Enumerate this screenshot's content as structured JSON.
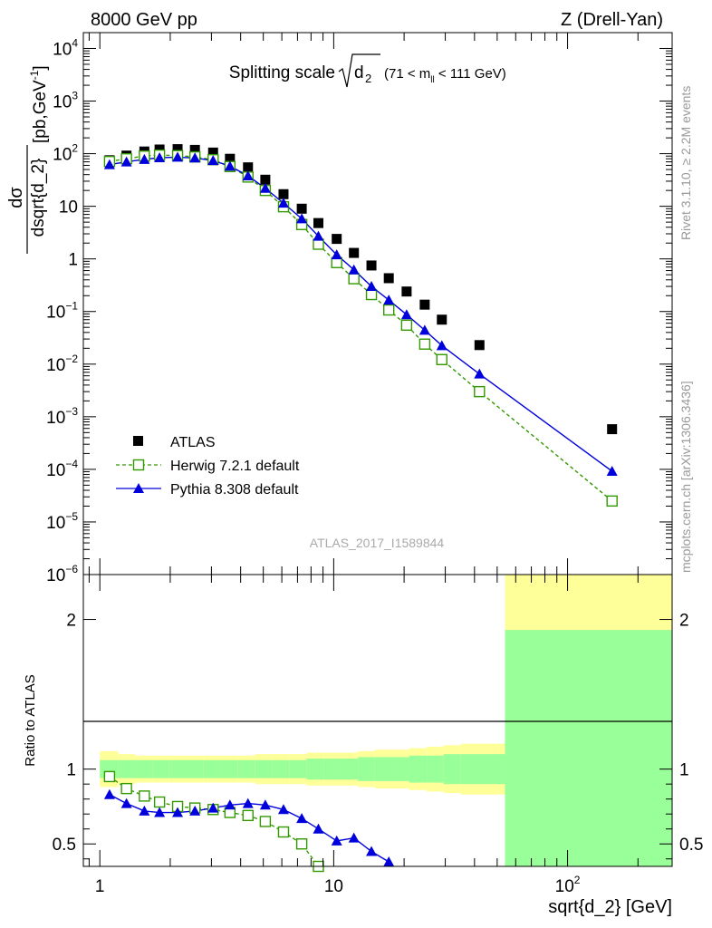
{
  "header": {
    "left": "8000 GeV pp",
    "right": "Z (Drell-Yan)"
  },
  "plot_title": {
    "main": "Splitting scale",
    "sqrt_arg": "d",
    "sqrt_sub": "2",
    "range_pre": "(71 < m",
    "range_sub": "ll",
    "range_post": " < 111 GeV)"
  },
  "side_labels": {
    "rivet": "Rivet 3.1.10, ≥ 2.2M events",
    "mcplots": "mcplots.cern.ch [arXiv:1306.3436]"
  },
  "watermark": "ATLAS_2017_I1589844",
  "colors": {
    "atlas": "#000000",
    "herwig": "#339900",
    "pythia": "#0000dd",
    "band_inner": "#99ff99",
    "band_outer": "#ffff99"
  },
  "chart_data": [
    {
      "type": "scatter",
      "title": "Splitting scale √d2 (71 < mll < 111 GeV)",
      "xlabel": "sqrt{d_2} [GeV]",
      "ylabel_num": "dσ",
      "ylabel_den": "dsqrt{d_2}",
      "ylabel_unit_pre": "[pb,GeV",
      "ylabel_unit_exp": "-1",
      "ylabel_unit_post": "]",
      "xscale": "log",
      "yscale": "log",
      "xlim": [
        0.85,
        280
      ],
      "ylim": [
        1e-06,
        20000.0
      ],
      "x_ticks": [
        {
          "value": 1,
          "label": "1"
        },
        {
          "value": 10,
          "label": "10"
        },
        {
          "value": 100,
          "label": "10",
          "exp": "2"
        }
      ],
      "y_ticks": [
        {
          "value": 10000.0,
          "label": "10",
          "exp": "4"
        },
        {
          "value": 1000.0,
          "label": "10",
          "exp": "3"
        },
        {
          "value": 100.0,
          "label": "10",
          "exp": "2"
        },
        {
          "value": 10,
          "label": "10",
          "exp": ""
        },
        {
          "value": 1,
          "label": "1",
          "exp": ""
        },
        {
          "value": 0.1,
          "label": "10",
          "exp": "−1"
        },
        {
          "value": 0.01,
          "label": "10",
          "exp": "−2"
        },
        {
          "value": 0.001,
          "label": "10",
          "exp": "−3"
        },
        {
          "value": 0.0001,
          "label": "10",
          "exp": "−4"
        },
        {
          "value": 1e-05,
          "label": "10",
          "exp": "−5"
        },
        {
          "value": 1e-06,
          "label": "10",
          "exp": "−6"
        }
      ],
      "legend_position": "bottom-left",
      "series": [
        {
          "name": "ATLAS",
          "marker": "square",
          "x": [
            1.1,
            1.3,
            1.55,
            1.8,
            2.15,
            2.55,
            3.05,
            3.6,
            4.3,
            5.1,
            6.1,
            7.3,
            8.6,
            10.3,
            12.2,
            14.5,
            17.2,
            20.5,
            24.5,
            29.0,
            42.0,
            155.0
          ],
          "y": [
            75,
            92,
            110,
            120,
            122,
            118,
            105,
            80,
            55,
            32,
            17,
            9.0,
            4.8,
            2.4,
            1.3,
            0.75,
            0.43,
            0.24,
            0.135,
            0.07,
            0.023,
            0.00058
          ]
        },
        {
          "name": "Herwig 7.2.1 default",
          "marker": "open-square",
          "x": [
            1.1,
            1.3,
            1.55,
            1.8,
            2.15,
            2.55,
            3.05,
            3.6,
            4.3,
            5.1,
            6.1,
            7.3,
            8.6,
            10.3,
            12.2,
            14.5,
            17.2,
            20.5,
            24.5,
            29.0,
            42.0,
            155.0
          ],
          "y": [
            71,
            80,
            90,
            94,
            92,
            87,
            77,
            57,
            36,
            20,
            9.8,
            4.5,
            1.9,
            0.85,
            0.42,
            0.21,
            0.107,
            0.055,
            0.024,
            0.0122,
            0.003,
            2.5e-05
          ]
        },
        {
          "name": "Pythia 8.308 default",
          "marker": "triangle",
          "x": [
            1.1,
            1.3,
            1.55,
            1.8,
            2.15,
            2.55,
            3.05,
            3.6,
            4.3,
            5.1,
            6.1,
            7.3,
            8.6,
            10.3,
            12.2,
            14.5,
            17.2,
            20.5,
            24.5,
            29.0,
            42.0,
            155.0
          ],
          "y": [
            62,
            70,
            78,
            84,
            86,
            83,
            74,
            58,
            38,
            22,
            11.5,
            5.8,
            2.7,
            1.2,
            0.62,
            0.3,
            0.165,
            0.087,
            0.044,
            0.0225,
            0.0065,
            9.2e-05
          ]
        }
      ]
    },
    {
      "type": "line",
      "ylabel": "Ratio to ATLAS",
      "xscale": "log",
      "xlim": [
        0.85,
        280
      ],
      "ylim": [
        0.35,
        2.3
      ],
      "y_ticks": [
        {
          "value": 2,
          "label": "2"
        },
        {
          "value": 1,
          "label": "1"
        },
        {
          "value": 0.5,
          "label": "0.5"
        }
      ],
      "bands": {
        "edges": [
          1.0,
          1.2,
          1.42,
          1.68,
          1.98,
          2.35,
          2.78,
          3.3,
          3.9,
          4.6,
          5.45,
          6.45,
          7.65,
          9.05,
          10.7,
          12.7,
          15.0,
          17.8,
          21.0,
          25.0,
          29.5,
          35.0,
          54.0,
          280.0
        ],
        "inner": [
          0.06,
          0.06,
          0.06,
          0.06,
          0.06,
          0.06,
          0.06,
          0.06,
          0.06,
          0.06,
          0.06,
          0.06,
          0.07,
          0.07,
          0.07,
          0.08,
          0.08,
          0.08,
          0.09,
          0.09,
          0.1,
          0.1,
          0.93
        ],
        "outer": [
          0.12,
          0.1,
          0.09,
          0.09,
          0.09,
          0.09,
          0.09,
          0.09,
          0.09,
          0.1,
          0.1,
          0.1,
          0.11,
          0.11,
          0.11,
          0.12,
          0.13,
          0.13,
          0.14,
          0.15,
          0.16,
          0.17,
          1.45
        ]
      },
      "series": [
        {
          "name": "Herwig 7.2.1 default",
          "x": [
            1.1,
            1.3,
            1.55,
            1.8,
            2.15,
            2.55,
            3.05,
            3.6,
            4.3,
            5.1,
            6.1,
            7.3,
            8.6
          ],
          "y": [
            0.95,
            0.87,
            0.82,
            0.78,
            0.75,
            0.74,
            0.73,
            0.71,
            0.69,
            0.65,
            0.58,
            0.5,
            0.35
          ]
        },
        {
          "name": "Pythia 8.308 default",
          "x": [
            1.1,
            1.3,
            1.55,
            1.8,
            2.15,
            2.55,
            3.05,
            3.6,
            4.3,
            5.1,
            6.1,
            7.3,
            8.6,
            10.3,
            12.2,
            14.5,
            17.2
          ],
          "y": [
            0.83,
            0.77,
            0.72,
            0.71,
            0.71,
            0.72,
            0.74,
            0.76,
            0.77,
            0.76,
            0.73,
            0.67,
            0.6,
            0.52,
            0.54,
            0.45,
            0.38
          ]
        }
      ]
    }
  ]
}
